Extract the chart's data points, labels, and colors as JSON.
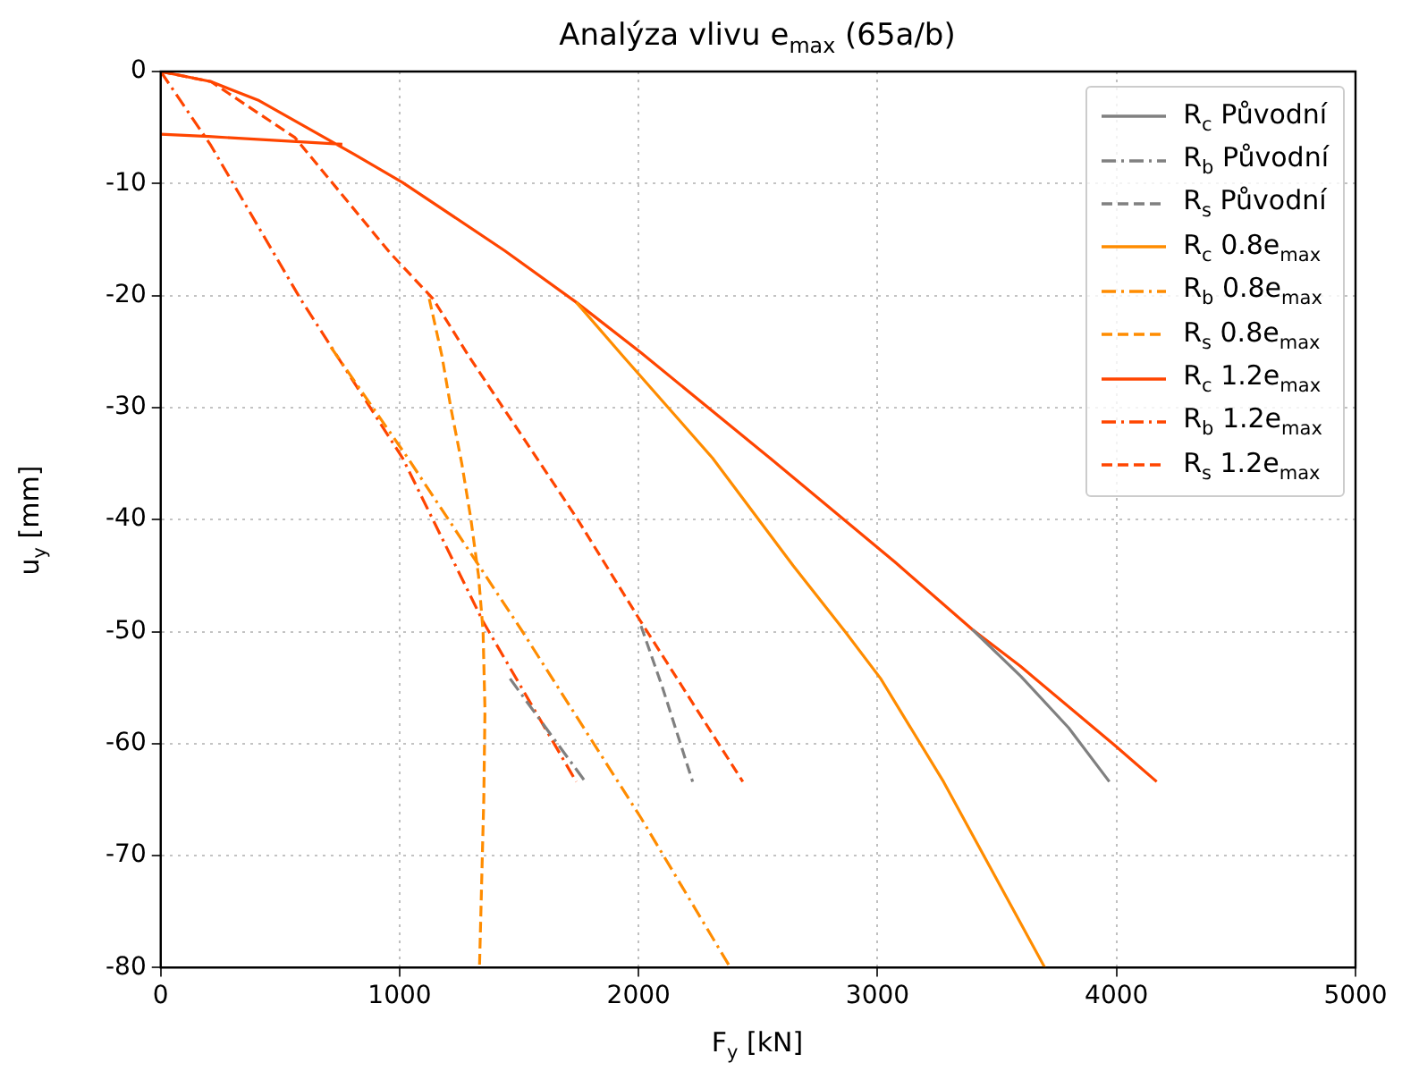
{
  "chart_data": {
    "type": "line",
    "title": "Analýza vlivu  e$_{max}$  (65a/b)",
    "xlabel": "F$_{y}$ [kN]",
    "ylabel": "u$_{y}$ [mm]",
    "xlim": [
      0,
      5000
    ],
    "xticks": [
      0,
      1000,
      2000,
      3000,
      4000,
      5000
    ],
    "ylim": [
      -80,
      0
    ],
    "yticks": [
      -80,
      -70,
      -60,
      -50,
      -40,
      -30,
      -20,
      -10,
      0
    ],
    "grid": true,
    "legend": "top right",
    "marker": "none",
    "series": [
      {
        "name": "R$_{c}$ Původní",
        "color": "#808080",
        "line_style": "solid",
        "x": [
          3396,
          3600,
          3800,
          3970
        ],
        "values": [
          -49.8,
          -54,
          -58.6,
          -63.4
        ]
      },
      {
        "name": "R$_{b}$ Původní",
        "color": "#808080",
        "line_style": "dashdot",
        "x": [
          1462,
          1612,
          1777
        ],
        "values": [
          -54.2,
          -58.6,
          -63.4
        ]
      },
      {
        "name": "R$_{s}$ Původní",
        "color": "#808080",
        "line_style": "dashed",
        "x": [
          2010,
          2100,
          2226
        ],
        "values": [
          -49.5,
          -55,
          -63.4
        ]
      },
      {
        "name": "R$_{c}$ 0.8e$_{max}$",
        "color": "#ff8c00",
        "line_style": "solid",
        "x": [
          1739,
          1934,
          2309,
          2646,
          2864,
          3013,
          3276,
          3700
        ],
        "values": [
          -20.6,
          -25.4,
          -34.5,
          -44.1,
          -50,
          -54.2,
          -63.4,
          -80
        ]
      },
      {
        "name": "R$_{b}$ 0.8e$_{max}$",
        "color": "#ff8c00",
        "line_style": "dashdot",
        "x": [
          712,
          1034,
          1514,
          2009,
          2384
        ],
        "values": [
          -24.6,
          -34.5,
          -50,
          -66.6,
          -80
        ]
      },
      {
        "name": "R$_{s}$ 0.8e$_{max}$",
        "color": "#ff8c00",
        "line_style": "dashed",
        "x": [
          1124,
          1177,
          1214,
          1260,
          1297,
          1330,
          1349,
          1357,
          1352,
          1334
        ],
        "values": [
          -20.3,
          -25.4,
          -30,
          -35,
          -39.8,
          -45,
          -50,
          -57,
          -65,
          -80
        ]
      },
      {
        "name": "R$_{c}$ 1.2e$_{max}$",
        "color": "#ff4500",
        "line_style": "solid",
        "x": [
          0,
          200,
          760,
          null,
          0,
          210,
          412,
          810,
          1012,
          1440,
          1739,
          2010,
          2549,
          3073,
          3396,
          3598,
          3995,
          4168
        ],
        "values": [
          -5.6,
          -5.8,
          -6.5,
          null,
          0,
          -0.9,
          -2.6,
          -7.4,
          -9.9,
          -16,
          -20.6,
          -25.1,
          -34.5,
          -43.8,
          -49.8,
          -53.1,
          -60.2,
          -63.4
        ]
      },
      {
        "name": "R$_{b}$ 1.2e$_{max}$",
        "color": "#ff4500",
        "line_style": "dashdot",
        "x": [
          0,
          210,
          585,
          1012,
          1349,
          1739
        ],
        "values": [
          0,
          -6.6,
          -20.3,
          -34.5,
          -49.1,
          -63.4
        ]
      },
      {
        "name": "R$_{s}$ 1.2e$_{max}$",
        "color": "#ff4500",
        "line_style": "dashed",
        "x": [
          0,
          210,
          562,
          960,
          1140,
          1289,
          1739,
          2009,
          2436
        ],
        "values": [
          0,
          -0.9,
          -5.9,
          -16.2,
          -20.3,
          -25.4,
          -39.8,
          -49.1,
          -63.4
        ]
      }
    ]
  }
}
